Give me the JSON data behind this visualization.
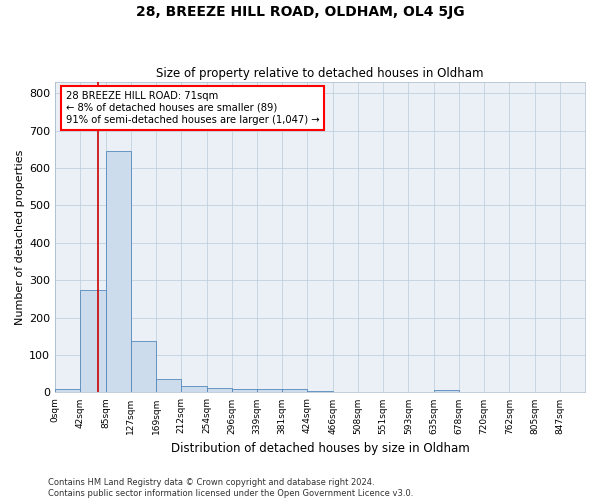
{
  "title_line1": "28, BREEZE HILL ROAD, OLDHAM, OL4 5JG",
  "title_line2": "Size of property relative to detached houses in Oldham",
  "xlabel": "Distribution of detached houses by size in Oldham",
  "ylabel": "Number of detached properties",
  "footer_line1": "Contains HM Land Registry data © Crown copyright and database right 2024.",
  "footer_line2": "Contains public sector information licensed under the Open Government Licence v3.0.",
  "bin_labels": [
    "0sqm",
    "42sqm",
    "85sqm",
    "127sqm",
    "169sqm",
    "212sqm",
    "254sqm",
    "296sqm",
    "339sqm",
    "381sqm",
    "424sqm",
    "466sqm",
    "508sqm",
    "551sqm",
    "593sqm",
    "635sqm",
    "678sqm",
    "720sqm",
    "762sqm",
    "805sqm",
    "847sqm"
  ],
  "bar_heights": [
    8,
    275,
    645,
    137,
    35,
    18,
    12,
    10,
    10,
    9,
    5,
    0,
    0,
    0,
    0,
    6,
    0,
    0,
    0,
    0,
    0
  ],
  "bar_color": "#ccdcec",
  "bar_edge_color": "#5588bb",
  "annotation_text": "28 BREEZE HILL ROAD: 71sqm\n← 8% of detached houses are smaller (89)\n91% of semi-detached houses are larger (1,047) →",
  "property_line_x": 1.69,
  "ylim": [
    0,
    830
  ],
  "yticks": [
    0,
    100,
    200,
    300,
    400,
    500,
    600,
    700,
    800
  ],
  "grid_color": "#b8ccd8",
  "bg_color": "#eaf0f6"
}
